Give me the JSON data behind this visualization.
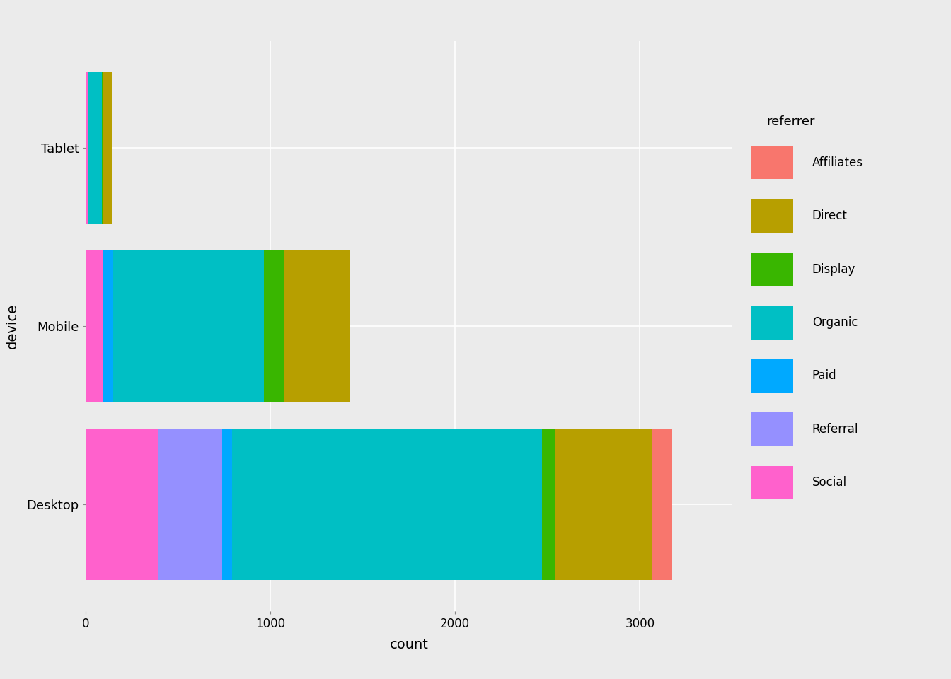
{
  "devices": [
    "Desktop",
    "Mobile",
    "Tablet"
  ],
  "colors": {
    "Affiliates": "#F8766D",
    "Direct": "#B79F00",
    "Display": "#39B600",
    "Organic": "#00BFC4",
    "Paid": "#00A9FF",
    "Referral": "#9590FF",
    "Social": "#FF61CC"
  },
  "data": {
    "Desktop": {
      "Social": 390,
      "Referral": 350,
      "Paid": 52,
      "Organic": 1680,
      "Display": 72,
      "Direct": 520,
      "Affiliates": 110
    },
    "Mobile": {
      "Social": 95,
      "Paid": 52,
      "Organic": 820,
      "Display": 105,
      "Direct": 360,
      "Affiliates": 0,
      "Referral": 0
    },
    "Tablet": {
      "Social": 10,
      "Paid": 0,
      "Organic": 80,
      "Display": 5,
      "Direct": 48,
      "Affiliates": 0,
      "Referral": 0
    }
  },
  "xlabel": "count",
  "ylabel": "device",
  "legend_title": "referrer",
  "background_color": "#EBEBEB",
  "panel_color": "#EBEBEB",
  "grid_color": "#FFFFFF",
  "xlim": [
    0,
    3500
  ],
  "xticks": [
    0,
    1000,
    2000,
    3000
  ]
}
